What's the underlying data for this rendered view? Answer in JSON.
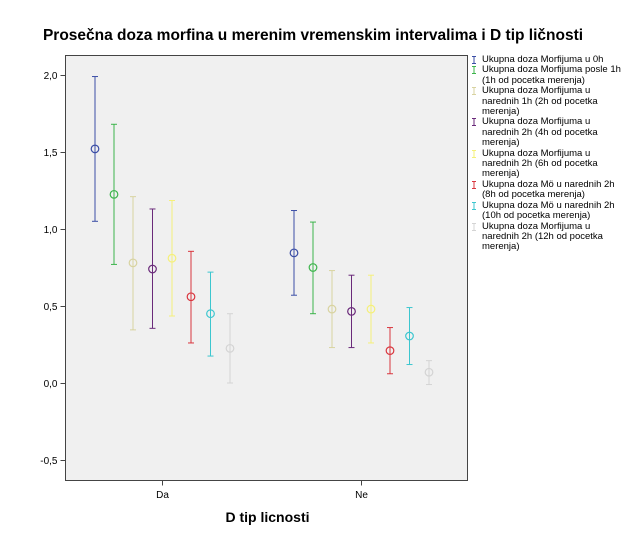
{
  "chart_data": {
    "type": "errorbar",
    "title": "Prosečna doza morfina u merenim vremenskim intervalima i D tip ličnosti",
    "xlabel": "D tip licnosti",
    "ylabel": "",
    "categories": [
      "Da",
      "Ne"
    ],
    "ylim": [
      -0.65,
      2.1
    ],
    "yticks": [
      -0.5,
      0.0,
      0.5,
      1.0,
      1.5,
      2.0
    ],
    "ytick_labels": [
      "-0,5",
      "0,0",
      "0,5",
      "1,0",
      "1,5",
      "2,0"
    ],
    "grid": false,
    "legend_position": "right",
    "plot_background": "#f0f0f0",
    "series": [
      {
        "name": "Ukupna doza  Morfijuma u 0h",
        "color": "#3b4ea6",
        "mean": [
          1.52,
          0.845
        ],
        "lower": [
          1.05,
          0.57
        ],
        "upper": [
          1.99,
          1.12
        ]
      },
      {
        "name": "Ukupna doza  Morfijuma posle 1h (1h od pocetka merenja)",
        "color": "#3cb44b",
        "mean": [
          1.225,
          0.75
        ],
        "lower": [
          0.77,
          0.45
        ],
        "upper": [
          1.68,
          1.045
        ]
      },
      {
        "name": "Ukupna doza  Morfijuma u narednih 1h (2h od pocetka merenja)",
        "color": "#d8d3a0",
        "mean": [
          0.78,
          0.48
        ],
        "lower": [
          0.345,
          0.23
        ],
        "upper": [
          1.21,
          0.73
        ]
      },
      {
        "name": "Ukupna doza  Morfijuma u narednih 2h (4h od pocetka merenja)",
        "color": "#6a2a7a",
        "mean": [
          0.74,
          0.465
        ],
        "lower": [
          0.355,
          0.23
        ],
        "upper": [
          1.13,
          0.7
        ]
      },
      {
        "name": "Ukupna doza  Morfijuma u narednih 2h (6h od pocetka merenja)",
        "color": "#f5f07a",
        "mean": [
          0.81,
          0.48
        ],
        "lower": [
          0.435,
          0.26
        ],
        "upper": [
          1.185,
          0.7
        ]
      },
      {
        "name": "Ukupna doza  Mö u narednih 2h (8h od pocetka merenja)",
        "color": "#d9363e",
        "mean": [
          0.56,
          0.21
        ],
        "lower": [
          0.26,
          0.06
        ],
        "upper": [
          0.855,
          0.36
        ]
      },
      {
        "name": "Ukupna doza  Mö u narednih 2h (10h od pocetka merenja)",
        "color": "#3cc6cf",
        "mean": [
          0.45,
          0.305
        ],
        "lower": [
          0.175,
          0.12
        ],
        "upper": [
          0.72,
          0.49
        ]
      },
      {
        "name": "Ukupna doza  Morfijuma u narednih 2h (12h od pocetka merenja)",
        "color": "#d4d4d4",
        "mean": [
          0.225,
          0.07
        ],
        "lower": [
          0.0,
          -0.01
        ],
        "upper": [
          0.45,
          0.145
        ]
      }
    ]
  }
}
